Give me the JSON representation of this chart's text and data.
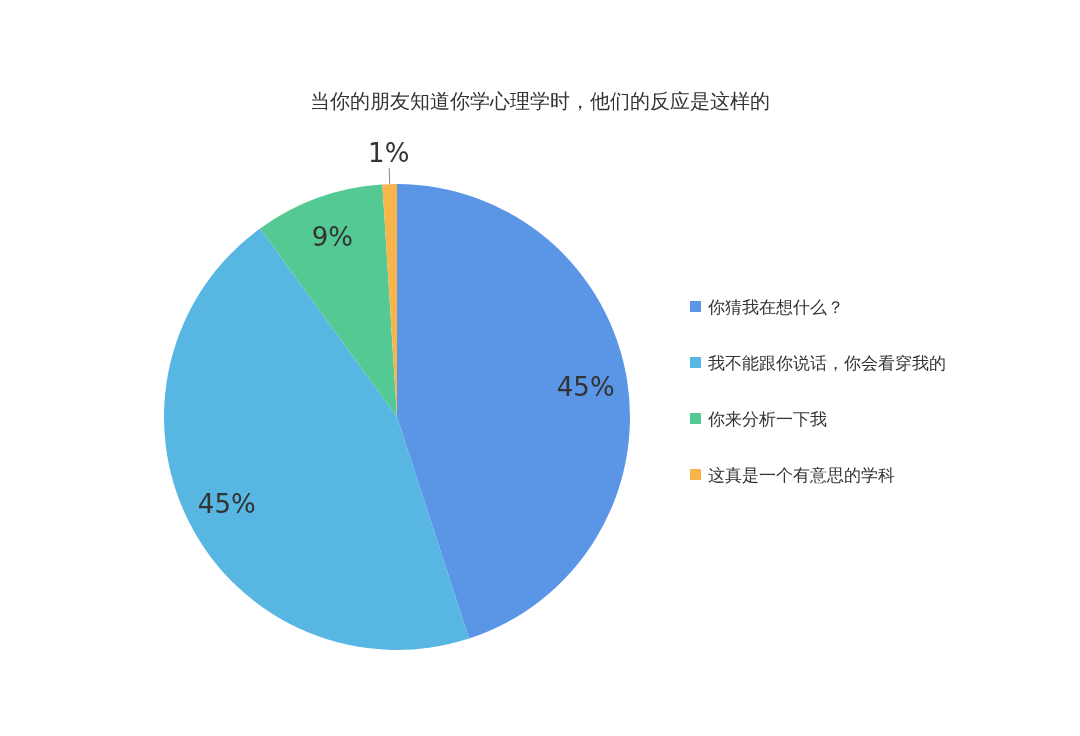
{
  "chart_data": {
    "type": "pie",
    "title": "当你的朋友知道你学心理学时，他们的反应是这样的",
    "categories": [
      "你猜我在想什么？",
      "我不能跟你说话，你会看穿我的",
      "你来分析一下我",
      "这真是一个有意思的学科"
    ],
    "values": [
      45,
      45,
      9,
      1
    ],
    "colors": [
      "#5b96e6",
      "#58b6e3",
      "#55c994",
      "#f8b54c"
    ],
    "value_labels": [
      "45%",
      "45%",
      "9%",
      "1%"
    ],
    "legend": "right"
  }
}
